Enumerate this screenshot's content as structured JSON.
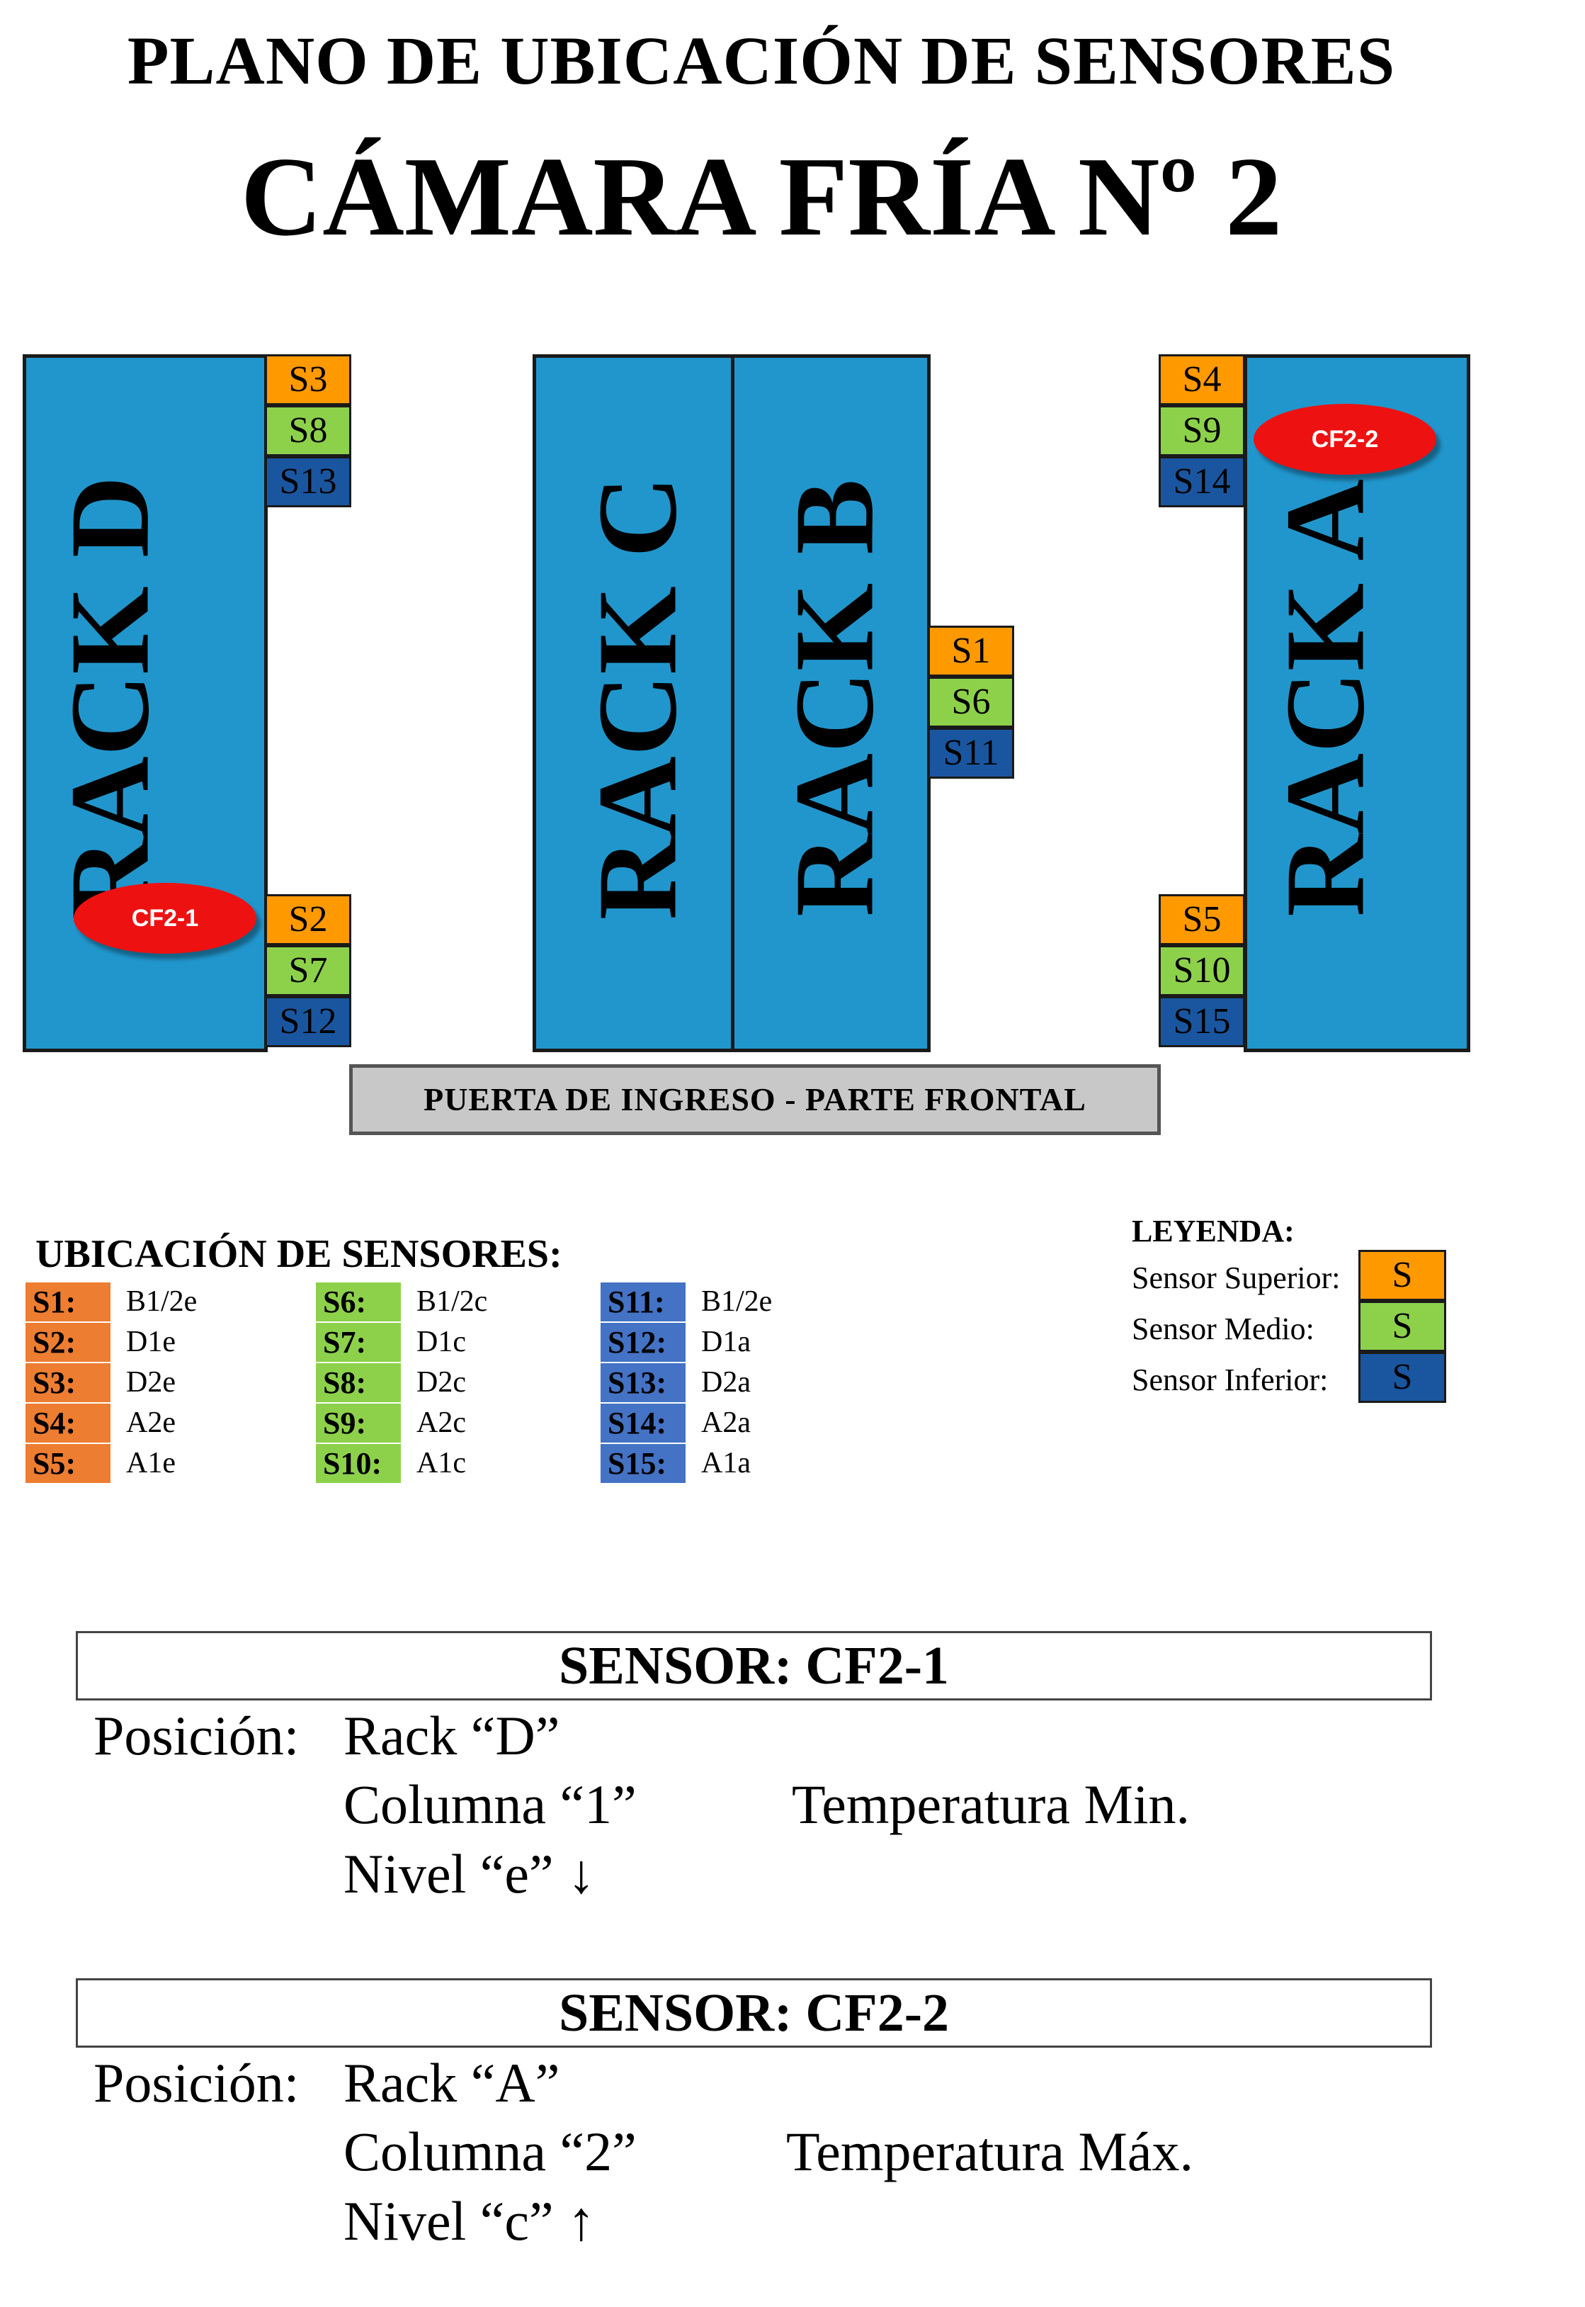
{
  "title": "PLANO DE UBICACIÓN DE SENSORES",
  "subtitle": "CÁMARA FRÍA Nº 2",
  "racks": {
    "d": "RACK D",
    "c": "RACK C",
    "b": "RACK B",
    "a": "RACK A"
  },
  "sensors": {
    "s1": "S1",
    "s2": "S2",
    "s3": "S3",
    "s4": "S4",
    "s5": "S5",
    "s6": "S6",
    "s7": "S7",
    "s8": "S8",
    "s9": "S9",
    "s10": "S10",
    "s11": "S11",
    "s12": "S12",
    "s13": "S13",
    "s14": "S14",
    "s15": "S15"
  },
  "markers": {
    "cf2_1": "CF2-1",
    "cf2_2": "CF2-2"
  },
  "door_label": "PUERTA DE INGRESO - PARTE FRONTAL",
  "locations": {
    "title": "UBICACIÓN DE SENSORES:",
    "columns": [
      [
        {
          "id": "S1:",
          "loc": "B1/2e"
        },
        {
          "id": "S2:",
          "loc": "D1e"
        },
        {
          "id": "S3:",
          "loc": "D2e"
        },
        {
          "id": "S4:",
          "loc": "A2e"
        },
        {
          "id": "S5:",
          "loc": "A1e"
        }
      ],
      [
        {
          "id": "S6:",
          "loc": "B1/2c"
        },
        {
          "id": "S7:",
          "loc": "D1c"
        },
        {
          "id": "S8:",
          "loc": "D2c"
        },
        {
          "id": "S9:",
          "loc": "A2c"
        },
        {
          "id": "S10:",
          "loc": "A1c"
        }
      ],
      [
        {
          "id": "S11:",
          "loc": "B1/2e"
        },
        {
          "id": "S12:",
          "loc": "D1a"
        },
        {
          "id": "S13:",
          "loc": "D2a"
        },
        {
          "id": "S14:",
          "loc": "A2a"
        },
        {
          "id": "S15:",
          "loc": "A1a"
        }
      ]
    ]
  },
  "legend": {
    "title": "LEYENDA:",
    "items": [
      {
        "label": "Sensor Superior:",
        "symbol": "S",
        "color": "#ff9900"
      },
      {
        "label": "Sensor Medio:",
        "symbol": "S",
        "color": "#8dd14b"
      },
      {
        "label": "Sensor Inferior:",
        "symbol": "S",
        "color": "#1a56a0"
      }
    ]
  },
  "sensor_details": [
    {
      "header": "SENSOR: CF2-1",
      "position_label": "Posición:",
      "rack": "Rack “D”",
      "column": "Columna “1”",
      "level": "Nivel “e” ↓",
      "note": "Temperatura Min."
    },
    {
      "header": "SENSOR: CF2-2",
      "position_label": "Posición:",
      "rack": "Rack “A”",
      "column": "Columna “2”",
      "level": "Nivel “c” ↑",
      "note": "Temperatura Máx."
    }
  ],
  "colors": {
    "rack": "#2196cc",
    "sensor_superior": "#ff9900",
    "sensor_medio": "#8dd14b",
    "sensor_inferior": "#1a56a0",
    "marker": "#ee1111",
    "door": "#c8c8c8"
  }
}
